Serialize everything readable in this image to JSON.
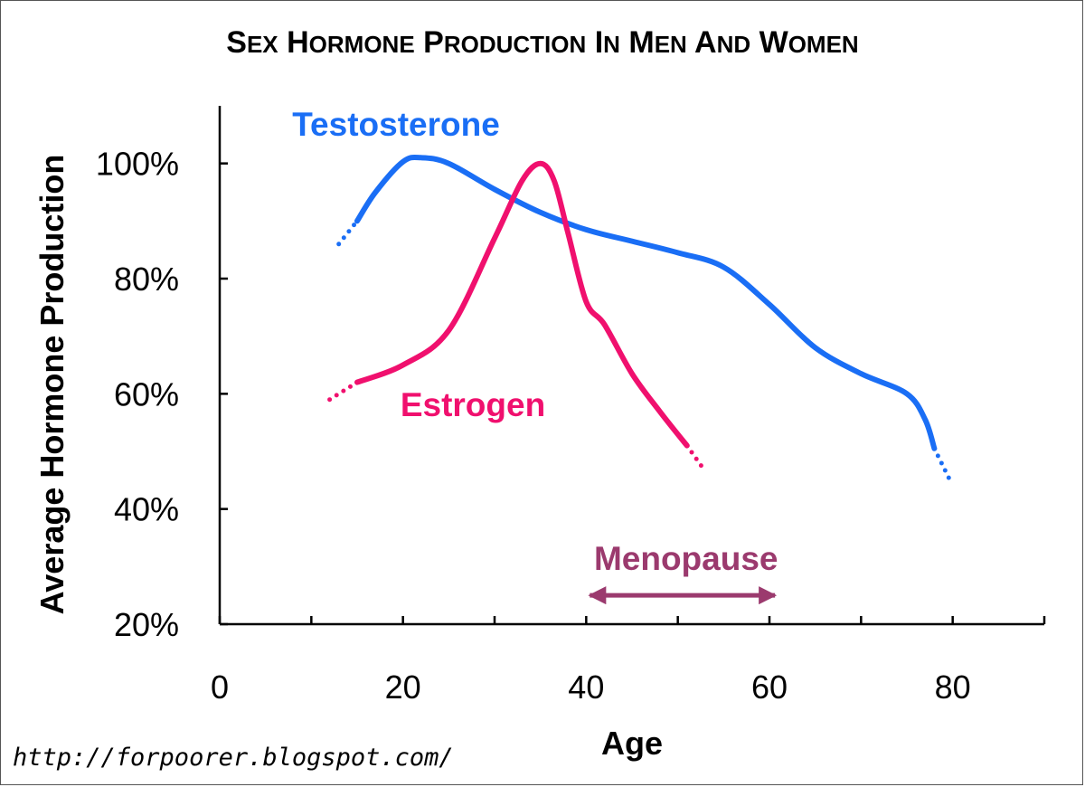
{
  "chart_data": {
    "type": "line",
    "title": "Sex Hormone Production in Men and Women",
    "xlabel": "Age",
    "ylabel": "Average Hormone Production",
    "xlim": [
      0,
      90
    ],
    "ylim": [
      20,
      110
    ],
    "x_ticks": [
      0,
      10,
      20,
      30,
      40,
      50,
      60,
      70,
      80,
      90
    ],
    "x_tick_labels": [
      "0",
      "20",
      "40",
      "60",
      "80"
    ],
    "x_tick_label_values": [
      0,
      20,
      40,
      60,
      80
    ],
    "y_tick_labels": [
      "20%",
      "40%",
      "60%",
      "80%",
      "100%"
    ],
    "y_tick_label_values": [
      20,
      40,
      60,
      80,
      100
    ],
    "grid": false,
    "series": [
      {
        "name": "Testosterone",
        "color": "#1a6ef5",
        "points": [
          [
            15,
            90
          ],
          [
            17,
            95
          ],
          [
            20,
            100.3
          ],
          [
            22,
            101
          ],
          [
            25,
            100
          ],
          [
            30,
            95.5
          ],
          [
            35,
            91.5
          ],
          [
            40,
            88.5
          ],
          [
            45,
            86.5
          ],
          [
            50,
            84.5
          ],
          [
            55,
            82
          ],
          [
            60,
            75.5
          ],
          [
            65,
            68
          ],
          [
            70,
            63.5
          ],
          [
            75,
            60
          ],
          [
            77,
            55.5
          ],
          [
            78,
            50.5
          ]
        ],
        "dotted_start": [
          [
            13,
            86
          ],
          [
            15,
            90
          ]
        ],
        "dotted_end": [
          [
            78,
            50.5
          ],
          [
            79.7,
            45
          ]
        ]
      },
      {
        "name": "Estrogen",
        "color": "#f0106e",
        "points": [
          [
            15,
            62
          ],
          [
            20,
            65
          ],
          [
            25,
            71
          ],
          [
            30,
            87
          ],
          [
            33,
            97
          ],
          [
            35,
            100
          ],
          [
            36.5,
            97
          ],
          [
            38,
            88
          ],
          [
            40,
            76
          ],
          [
            42,
            72
          ],
          [
            45,
            63.5
          ],
          [
            48,
            57
          ],
          [
            51,
            51
          ]
        ],
        "dotted_start": [
          [
            12,
            59
          ],
          [
            15,
            62
          ]
        ],
        "dotted_end": [
          [
            51,
            51
          ],
          [
            53,
            46.5
          ]
        ]
      }
    ],
    "annotations": [
      {
        "text": "Menopause",
        "type": "double-arrow",
        "x_range": [
          40,
          61
        ],
        "y": 25,
        "color": "#9b3a6e"
      }
    ]
  },
  "source": "http://forpoorer.blogspot.com/"
}
